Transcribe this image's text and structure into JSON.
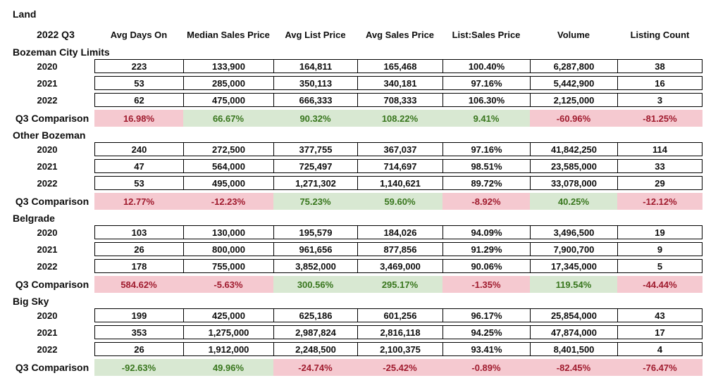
{
  "colors": {
    "positive_bg": "#d8e8d2",
    "positive_text": "#38761d",
    "negative_bg": "#f5c9d0",
    "negative_text": "#a01b2e",
    "border": "#000000",
    "text": "#0d0d0d"
  },
  "chart_data": {
    "type": "table",
    "title": "Land",
    "period": "2022 Q3",
    "columns": [
      "Avg Days On",
      "Median Sales Price",
      "Avg List Price",
      "Avg Sales Price",
      "List:Sales Price",
      "Volume",
      "Listing Count"
    ],
    "comparison_label": "Q3 Comparison",
    "sections": [
      {
        "name": "Bozeman City Limits",
        "rows": [
          {
            "year": "2020",
            "values": [
              "223",
              "133,900",
              "164,811",
              "165,468",
              "100.40%",
              "6,287,800",
              "38"
            ]
          },
          {
            "year": "2021",
            "values": [
              "53",
              "285,000",
              "350,113",
              "340,181",
              "97.16%",
              "5,442,900",
              "16"
            ]
          },
          {
            "year": "2022",
            "values": [
              "62",
              "475,000",
              "666,333",
              "708,333",
              "106.30%",
              "2,125,000",
              "3"
            ]
          }
        ],
        "comparison": [
          {
            "value": "16.98%",
            "sentiment": "negative"
          },
          {
            "value": "66.67%",
            "sentiment": "positive"
          },
          {
            "value": "90.32%",
            "sentiment": "positive"
          },
          {
            "value": "108.22%",
            "sentiment": "positive"
          },
          {
            "value": "9.41%",
            "sentiment": "positive"
          },
          {
            "value": "-60.96%",
            "sentiment": "negative"
          },
          {
            "value": "-81.25%",
            "sentiment": "negative"
          }
        ]
      },
      {
        "name": "Other Bozeman",
        "rows": [
          {
            "year": "2020",
            "values": [
              "240",
              "272,500",
              "377,755",
              "367,037",
              "97.16%",
              "41,842,250",
              "114"
            ]
          },
          {
            "year": "2021",
            "values": [
              "47",
              "564,000",
              "725,497",
              "714,697",
              "98.51%",
              "23,585,000",
              "33"
            ]
          },
          {
            "year": "2022",
            "values": [
              "53",
              "495,000",
              "1,271,302",
              "1,140,621",
              "89.72%",
              "33,078,000",
              "29"
            ]
          }
        ],
        "comparison": [
          {
            "value": "12.77%",
            "sentiment": "negative"
          },
          {
            "value": "-12.23%",
            "sentiment": "negative"
          },
          {
            "value": "75.23%",
            "sentiment": "positive"
          },
          {
            "value": "59.60%",
            "sentiment": "positive"
          },
          {
            "value": "-8.92%",
            "sentiment": "negative"
          },
          {
            "value": "40.25%",
            "sentiment": "positive"
          },
          {
            "value": "-12.12%",
            "sentiment": "negative"
          }
        ]
      },
      {
        "name": "Belgrade",
        "rows": [
          {
            "year": "2020",
            "values": [
              "103",
              "130,000",
              "195,579",
              "184,026",
              "94.09%",
              "3,496,500",
              "19"
            ]
          },
          {
            "year": "2021",
            "values": [
              "26",
              "800,000",
              "961,656",
              "877,856",
              "91.29%",
              "7,900,700",
              "9"
            ]
          },
          {
            "year": "2022",
            "values": [
              "178",
              "755,000",
              "3,852,000",
              "3,469,000",
              "90.06%",
              "17,345,000",
              "5"
            ]
          }
        ],
        "comparison": [
          {
            "value": "584.62%",
            "sentiment": "negative"
          },
          {
            "value": "-5.63%",
            "sentiment": "negative"
          },
          {
            "value": "300.56%",
            "sentiment": "positive"
          },
          {
            "value": "295.17%",
            "sentiment": "positive"
          },
          {
            "value": "-1.35%",
            "sentiment": "negative"
          },
          {
            "value": "119.54%",
            "sentiment": "positive"
          },
          {
            "value": "-44.44%",
            "sentiment": "negative"
          }
        ]
      },
      {
        "name": "Big Sky",
        "rows": [
          {
            "year": "2020",
            "values": [
              "199",
              "425,000",
              "625,186",
              "601,256",
              "96.17%",
              "25,854,000",
              "43"
            ]
          },
          {
            "year": "2021",
            "values": [
              "353",
              "1,275,000",
              "2,987,824",
              "2,816,118",
              "94.25%",
              "47,874,000",
              "17"
            ]
          },
          {
            "year": "2022",
            "values": [
              "26",
              "1,912,000",
              "2,248,500",
              "2,100,375",
              "93.41%",
              "8,401,500",
              "4"
            ]
          }
        ],
        "comparison": [
          {
            "value": "-92.63%",
            "sentiment": "positive"
          },
          {
            "value": "49.96%",
            "sentiment": "positive"
          },
          {
            "value": "-24.74%",
            "sentiment": "negative"
          },
          {
            "value": "-25.42%",
            "sentiment": "negative"
          },
          {
            "value": "-0.89%",
            "sentiment": "negative"
          },
          {
            "value": "-82.45%",
            "sentiment": "negative"
          },
          {
            "value": "-76.47%",
            "sentiment": "negative"
          }
        ]
      }
    ]
  }
}
